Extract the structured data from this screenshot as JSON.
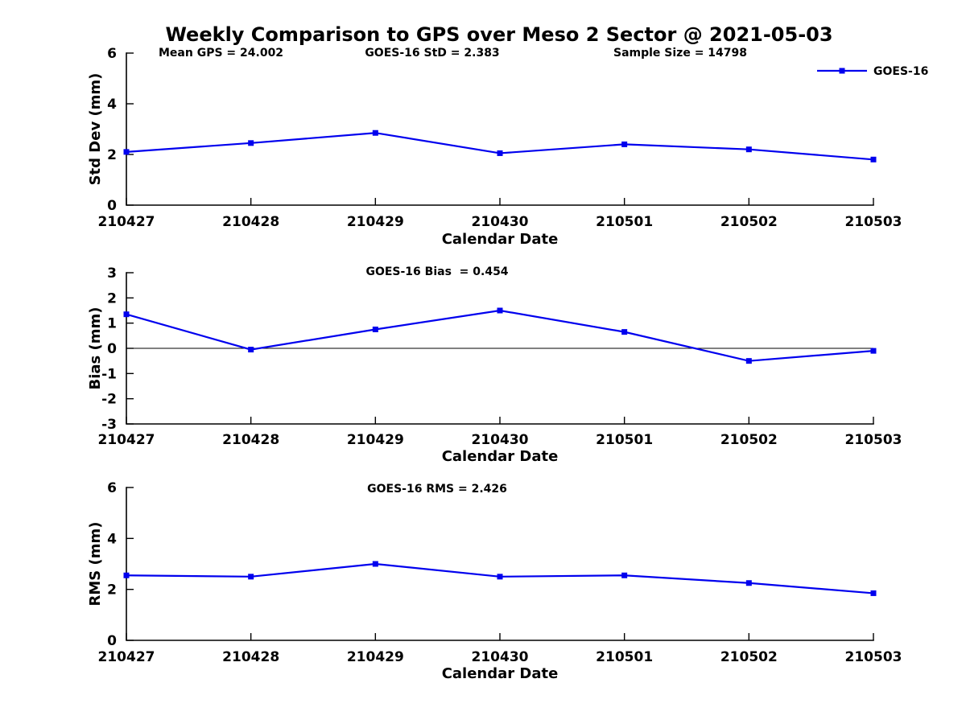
{
  "title": "Weekly Comparison to GPS over Meso 2 Sector @ 2021-05-03",
  "header_stats": {
    "mean_gps": "Mean GPS = 24.002",
    "std": "GOES-16 StD = 2.383",
    "sample_size": "Sample Size = 14798"
  },
  "legend": {
    "label": "GOES-16",
    "color": "#0000ee",
    "position": "top-right"
  },
  "chart_data": [
    {
      "type": "line",
      "title": "",
      "xlabel": "Calendar Date",
      "ylabel": "Std Dev (mm)",
      "ylim": [
        0,
        6
      ],
      "yticks": [
        0,
        2,
        4,
        6
      ],
      "grid": false,
      "categories": [
        "210427",
        "210428",
        "210429",
        "210430",
        "210501",
        "210502",
        "210503"
      ],
      "series": [
        {
          "name": "GOES-16",
          "values": [
            2.1,
            2.45,
            2.85,
            2.05,
            2.4,
            2.2,
            1.8
          ]
        }
      ]
    },
    {
      "type": "line",
      "title": "GOES-16 Bias  = 0.454",
      "xlabel": "Calendar Date",
      "ylabel": "Bias (mm)",
      "ylim": [
        -3,
        3
      ],
      "yticks": [
        -3,
        -2,
        -1,
        0,
        1,
        2,
        3
      ],
      "zero_line": true,
      "grid": false,
      "categories": [
        "210427",
        "210428",
        "210429",
        "210430",
        "210501",
        "210502",
        "210503"
      ],
      "series": [
        {
          "name": "GOES-16",
          "values": [
            1.35,
            -0.05,
            0.75,
            1.5,
            0.65,
            -0.5,
            -0.1
          ]
        }
      ]
    },
    {
      "type": "line",
      "title": "GOES-16 RMS = 2.426",
      "xlabel": "Calendar Date",
      "ylabel": "RMS (mm)",
      "ylim": [
        0,
        6
      ],
      "yticks": [
        0,
        2,
        4,
        6
      ],
      "grid": false,
      "categories": [
        "210427",
        "210428",
        "210429",
        "210430",
        "210501",
        "210502",
        "210503"
      ],
      "series": [
        {
          "name": "GOES-16",
          "values": [
            2.55,
            2.5,
            3.0,
            2.5,
            2.55,
            2.25,
            1.85
          ]
        }
      ]
    }
  ]
}
